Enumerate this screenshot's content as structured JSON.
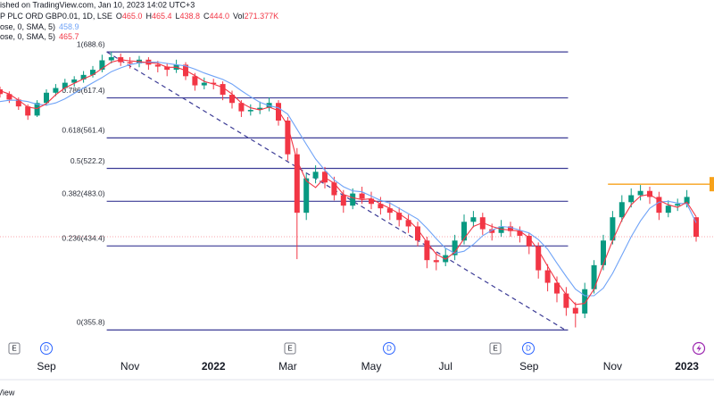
{
  "header": {
    "published": "ished on TradingView.com, Jan 10, 2023 14:02 UTC+3",
    "symbol": "P PLC ORD GBP0.01, 1D, LSE",
    "quote": [
      {
        "key": "O",
        "value": "465.0"
      },
      {
        "key": "H",
        "value": "465.4"
      },
      {
        "key": "L",
        "value": "438.8"
      },
      {
        "key": "C",
        "value": "444.0"
      },
      {
        "key": "Vol",
        "value": "271.377K"
      }
    ],
    "footer": "View"
  },
  "chart_data": {
    "type": "candlestick",
    "categories": [
      null,
      null,
      null,
      null,
      null,
      "Sep",
      null,
      null,
      null,
      null,
      null,
      null,
      null,
      null,
      "Nov",
      null,
      null,
      null,
      null,
      null,
      null,
      null,
      null,
      "2022",
      null,
      null,
      null,
      null,
      null,
      null,
      null,
      "Mar",
      null,
      null,
      null,
      null,
      null,
      null,
      null,
      null,
      "May",
      null,
      null,
      null,
      null,
      null,
      null,
      null,
      "Jul",
      null,
      null,
      null,
      null,
      null,
      null,
      null,
      null,
      "Sep",
      null,
      null,
      null,
      null,
      null,
      null,
      null,
      null,
      "Nov",
      null,
      null,
      null,
      null,
      null,
      null,
      null,
      "2023",
      null
    ],
    "open": [
      630,
      623,
      615,
      605,
      592,
      610,
      625,
      632,
      640,
      645,
      652,
      660,
      675,
      680,
      672,
      670,
      676,
      668,
      665,
      660,
      668,
      650,
      636,
      640,
      638,
      622,
      610,
      598,
      600,
      603,
      610,
      585,
      540,
      470,
      510,
      518,
      505,
      490,
      478,
      492,
      486,
      480,
      475,
      470,
      462,
      455,
      440,
      420,
      418,
      425,
      440,
      460,
      465,
      452,
      448,
      455,
      450,
      445,
      434,
      410,
      398,
      388,
      375,
      370,
      392,
      415,
      440,
      465,
      482,
      490,
      495,
      488,
      470,
      478,
      480,
      465
    ],
    "high": [
      634,
      627,
      618,
      608,
      614,
      630,
      638,
      646,
      650,
      658,
      666,
      684,
      689,
      686,
      680,
      682,
      680,
      674,
      670,
      676,
      672,
      655,
      648,
      646,
      642,
      628,
      614,
      608,
      612,
      618,
      614,
      590,
      548,
      516,
      526,
      524,
      512,
      496,
      498,
      500,
      494,
      488,
      482,
      476,
      468,
      460,
      444,
      428,
      432,
      446,
      468,
      472,
      470,
      458,
      462,
      460,
      455,
      448,
      438,
      416,
      404,
      394,
      380,
      398,
      420,
      446,
      472,
      490,
      498,
      502,
      500,
      494,
      484,
      486,
      496,
      465.4
    ],
    "low": [
      618,
      610,
      600,
      586,
      590,
      606,
      620,
      628,
      634,
      640,
      648,
      656,
      670,
      666,
      662,
      664,
      660,
      656,
      650,
      655,
      644,
      628,
      630,
      630,
      614,
      602,
      590,
      592,
      594,
      598,
      578,
      532,
      421,
      462,
      504,
      498,
      484,
      470,
      474,
      480,
      474,
      468,
      462,
      455,
      448,
      434,
      412,
      410,
      414,
      420,
      436,
      454,
      446,
      440,
      444,
      444,
      438,
      426,
      402,
      390,
      380,
      368,
      358,
      366,
      388,
      410,
      436,
      460,
      476,
      484,
      480,
      462,
      465,
      472,
      476,
      438.8
    ],
    "close": [
      623,
      615,
      605,
      592,
      610,
      625,
      632,
      640,
      645,
      652,
      660,
      675,
      680,
      672,
      670,
      676,
      668,
      665,
      660,
      668,
      650,
      636,
      640,
      638,
      622,
      610,
      598,
      600,
      603,
      610,
      585,
      540,
      470,
      510,
      518,
      505,
      490,
      478,
      492,
      486,
      480,
      475,
      470,
      462,
      455,
      440,
      420,
      418,
      425,
      440,
      460,
      465,
      452,
      448,
      455,
      450,
      445,
      434,
      410,
      398,
      388,
      375,
      370,
      392,
      415,
      440,
      465,
      482,
      490,
      495,
      488,
      470,
      478,
      480,
      488,
      444
    ],
    "up_color": "#089981",
    "down_color": "#f23645",
    "series": [
      {
        "name": "ose, 0, SMA, 5)",
        "color": "#6fa3f7",
        "values": [
          612,
          614,
          614,
          612,
          608,
          607,
          610,
          616,
          624,
          632,
          640,
          648,
          657,
          663,
          668,
          671,
          672,
          672,
          670,
          668,
          666,
          661,
          655,
          650,
          645,
          638,
          628,
          619,
          611,
          606,
          603,
          594,
          573,
          553,
          534,
          520,
          508,
          500,
          495,
          494,
          489,
          484,
          481,
          475,
          469,
          463,
          453,
          442,
          432,
          427,
          429,
          436,
          445,
          451,
          455,
          454,
          451,
          448,
          441,
          431,
          417,
          404,
          392,
          386,
          386,
          393,
          407,
          425,
          444,
          461,
          475,
          482,
          483,
          481,
          480,
          458.9
        ]
      },
      {
        "name": "ose, 0, SMA, 5)",
        "color": "#f23645",
        "values": [
          628,
          623,
          614,
          604,
          602,
          609,
          622,
          632,
          639,
          646,
          652,
          662,
          672,
          676,
          674,
          673,
          671,
          670,
          664,
          664,
          659,
          651,
          642,
          638,
          633,
          623,
          610,
          603,
          600,
          604,
          599,
          578,
          532,
          507,
          499,
          511,
          504,
          491,
          487,
          485,
          486,
          480,
          475,
          469,
          462,
          452,
          438,
          426,
          421,
          428,
          442,
          455,
          459,
          455,
          452,
          451,
          450,
          443,
          430,
          414,
          399,
          387,
          378,
          379,
          392,
          416,
          440,
          462,
          479,
          489,
          491,
          484,
          479,
          476,
          482,
          465.7
        ]
      }
    ],
    "ylim": [
      337,
      708
    ],
    "log_scale": true,
    "fib_color": "#3c3c96",
    "fib_levels": [
      {
        "value": 688.6,
        "label": "1(688.6)"
      },
      {
        "value": 617.4,
        "label": "0.786(617.4)"
      },
      {
        "value": 561.4,
        "label": "0.618(561.4)"
      },
      {
        "value": 522.2,
        "label": "0.5(522.2)"
      },
      {
        "value": 483.0,
        "label": "0.382(483.0)"
      },
      {
        "value": 434.4,
        "label": "0.236(434.4)"
      },
      {
        "value": 355.8,
        "label": "0(355.8)"
      }
    ],
    "horizontal_line": {
      "value": 503,
      "color": "#f7a21b"
    },
    "event_markers": [
      "E",
      "D",
      "E",
      "D",
      "E",
      "D"
    ]
  }
}
